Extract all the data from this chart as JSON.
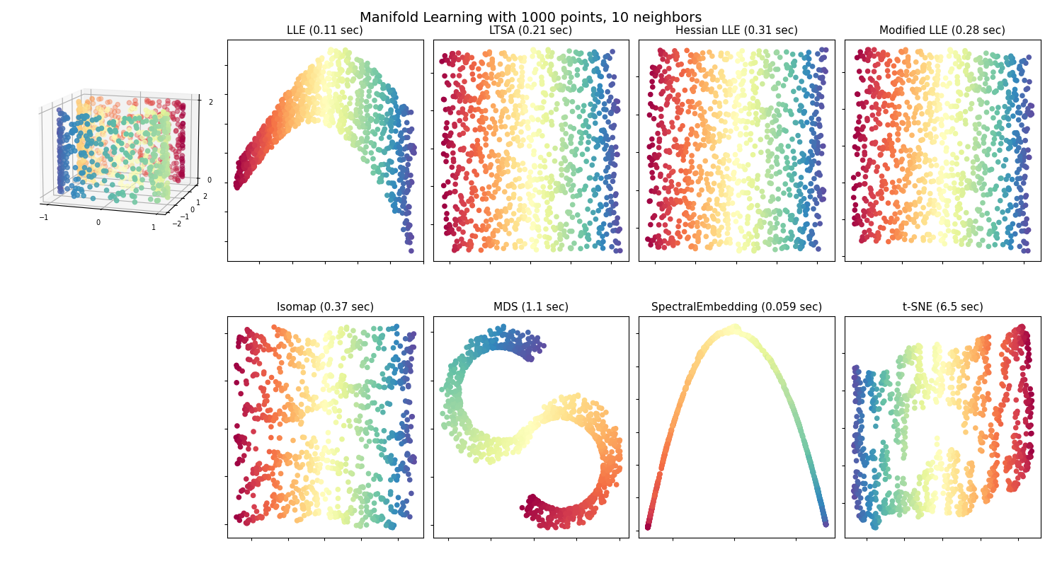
{
  "title": "Manifold Learning with 1000 points, 10 neighbors",
  "n_points": 1000,
  "n_neighbors": 10,
  "subplot_titles": [
    "LLE (0.11 sec)",
    "LTSA (0.21 sec)",
    "Hessian LLE (0.31 sec)",
    "Modified LLE (0.28 sec)",
    "Isomap (0.37 sec)",
    "MDS (1.1 sec)",
    "SpectralEmbedding (0.059 sec)",
    "t-SNE (6.5 sec)"
  ],
  "colormap": "Spectral",
  "marker_size": 20,
  "background_color": "white",
  "title_fontsize": 14,
  "subtitle_fontsize": 11,
  "random_state": 0,
  "3d_elev": 12,
  "3d_azim": -72
}
